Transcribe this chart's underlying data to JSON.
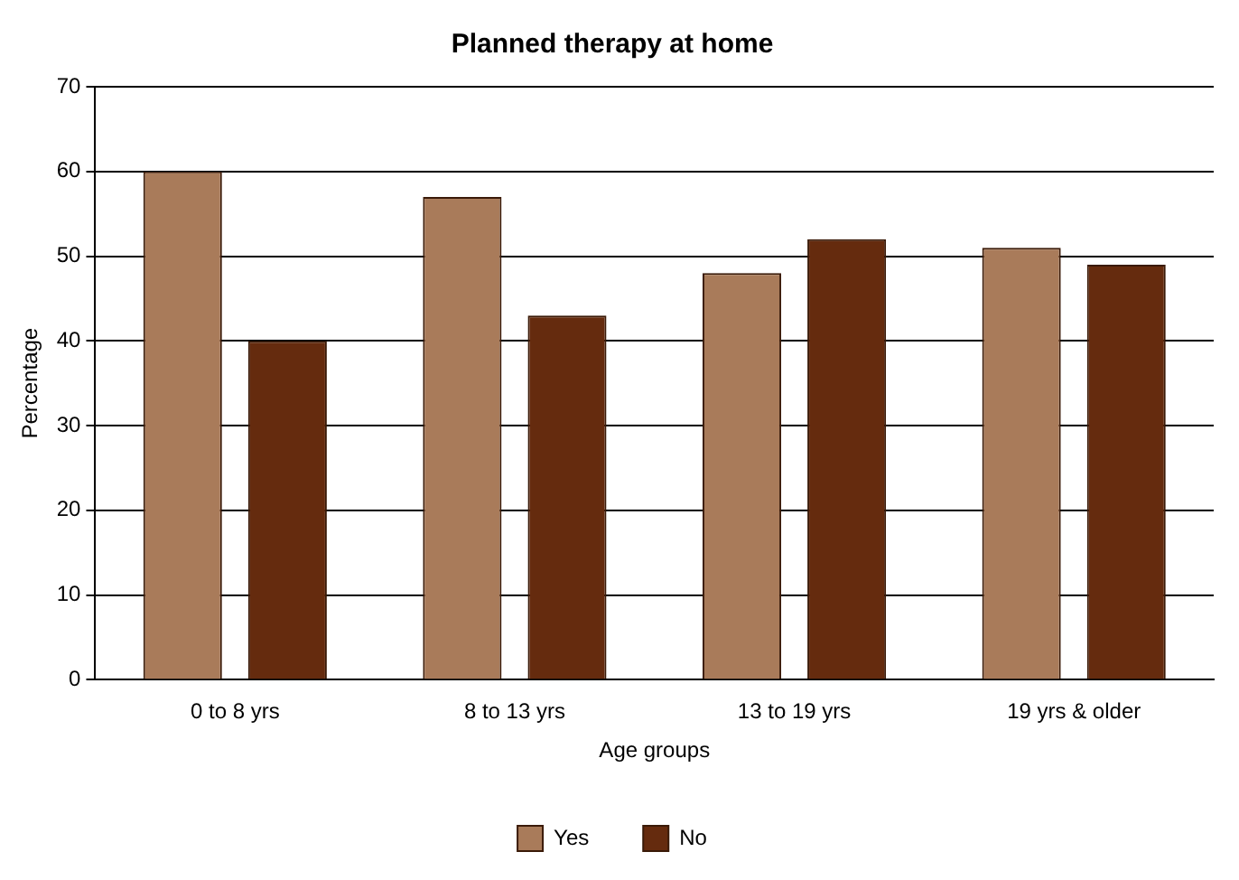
{
  "chart_data": {
    "type": "bar",
    "title": "Planned therapy at home",
    "xlabel": "Age groups",
    "ylabel": "Percentage",
    "categories": [
      "0 to 8 yrs",
      "8 to 13 yrs",
      "13 to 19 yrs",
      "19 yrs & older"
    ],
    "series": [
      {
        "name": "Yes",
        "color": "#a97b5a",
        "values": [
          60,
          57,
          48,
          51
        ]
      },
      {
        "name": "No",
        "color": "#652b0e",
        "values": [
          40,
          43,
          52,
          49
        ]
      }
    ],
    "ylim": [
      0,
      70
    ],
    "yticks": [
      0,
      10,
      20,
      30,
      40,
      50,
      60,
      70
    ],
    "grid": "y",
    "legend": "bottom"
  }
}
